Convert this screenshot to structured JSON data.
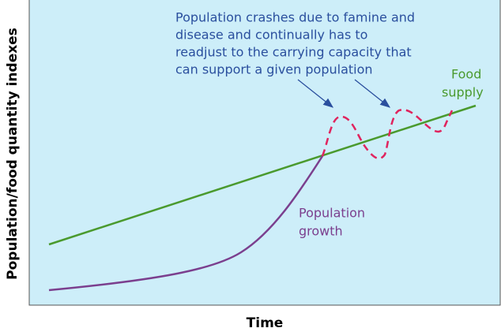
{
  "axes": {
    "y_label": "Population/food quantity indexes",
    "x_label": "Time"
  },
  "annotation": {
    "lines": [
      "Population crashes due to famine and",
      "disease and continually has to",
      "readjust to the carrying capacity that",
      "can support a given population"
    ]
  },
  "food_label": {
    "lines": [
      "Food",
      "supply"
    ]
  },
  "population_label": {
    "lines": [
      "Population",
      "growth"
    ]
  }
}
